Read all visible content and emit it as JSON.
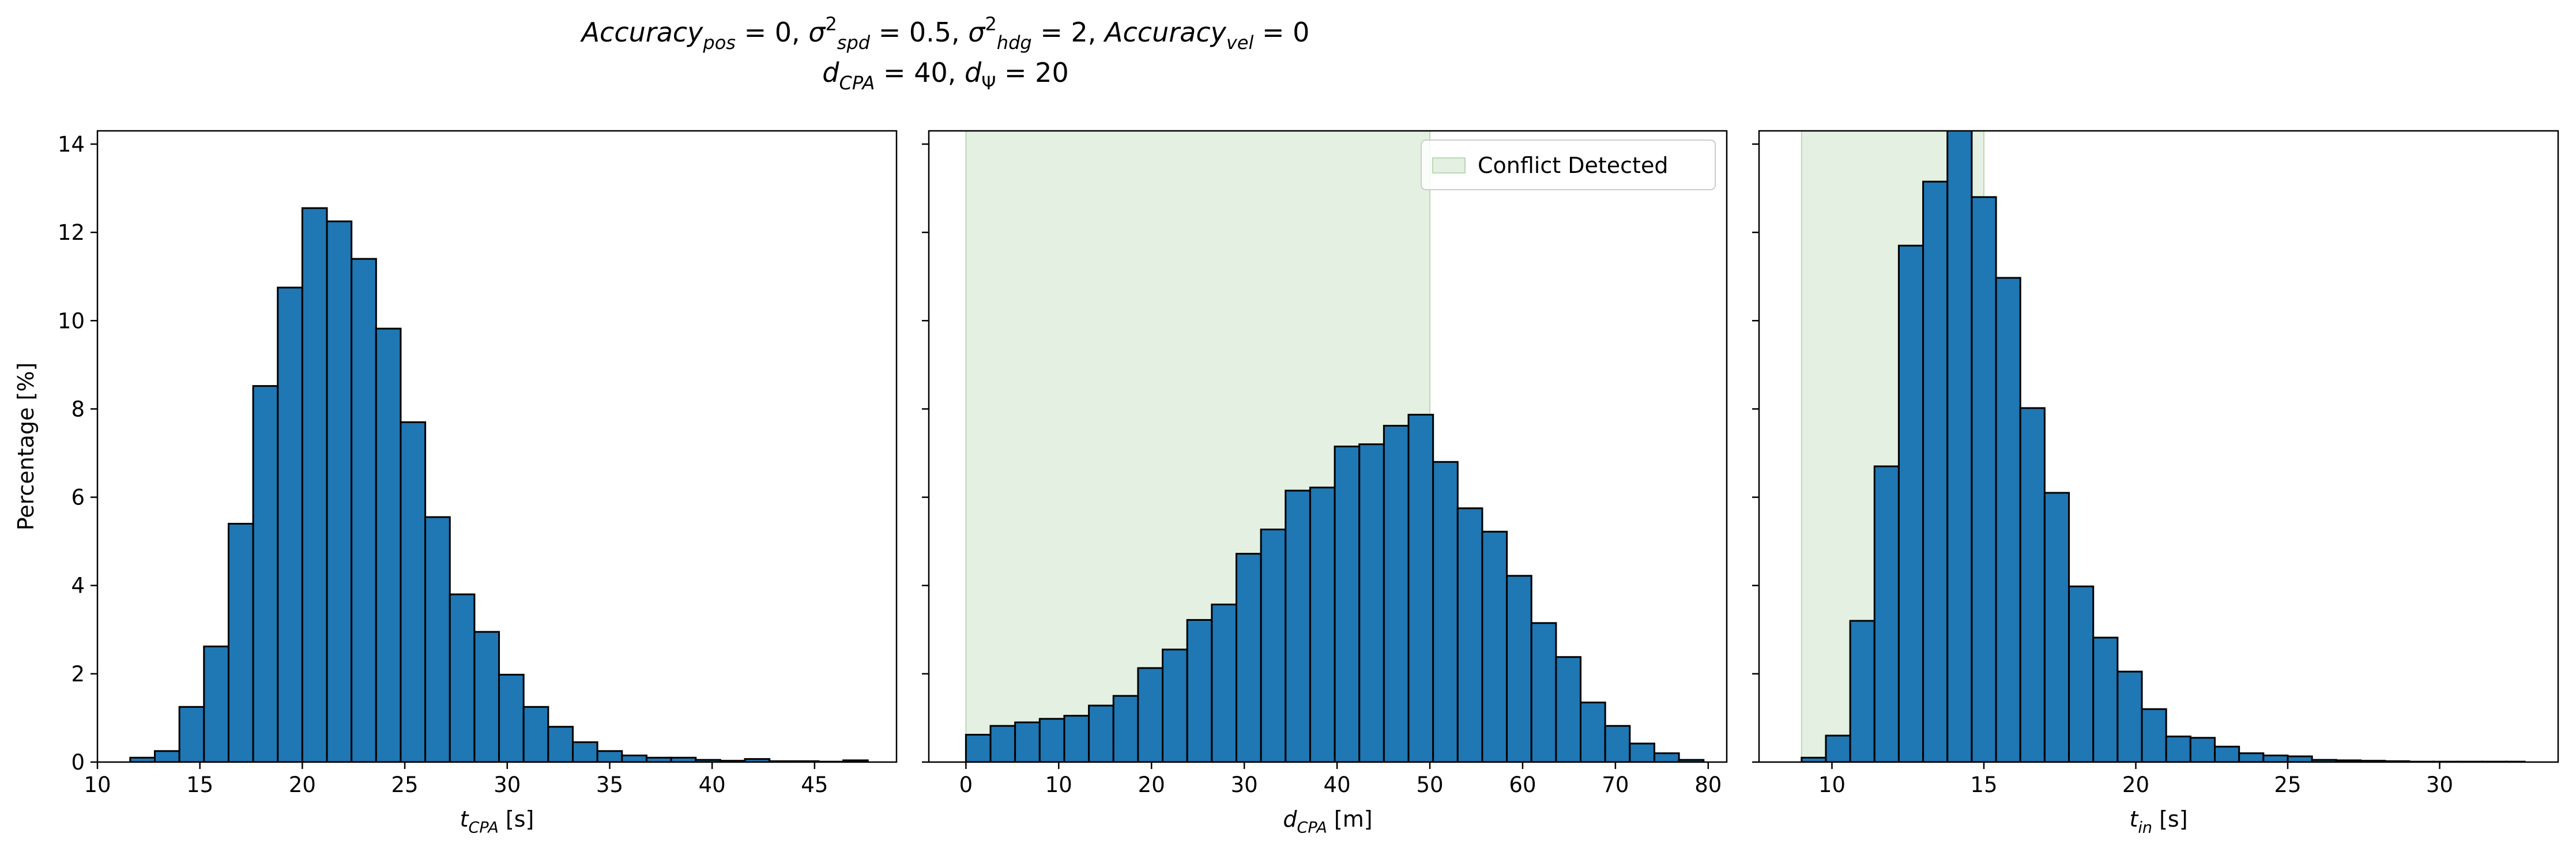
{
  "figure": {
    "title_line1": [
      {
        "t": "Accuracy",
        "style": "italic"
      },
      {
        "t": "pos",
        "style": "italic",
        "sub": true
      },
      {
        "t": " = 0, "
      },
      {
        "t": "σ",
        "style": "italic"
      },
      {
        "t": "2",
        "sup": true
      },
      {
        "t": "spd",
        "style": "italic",
        "sub": true
      },
      {
        "t": " = 0.5, "
      },
      {
        "t": "σ",
        "style": "italic"
      },
      {
        "t": "2",
        "sup": true
      },
      {
        "t": "hdg",
        "style": "italic",
        "sub": true
      },
      {
        "t": " = 2, "
      },
      {
        "t": "Accuracy",
        "style": "italic"
      },
      {
        "t": "vel",
        "style": "italic",
        "sub": true
      },
      {
        "t": " = 0"
      }
    ],
    "title_line2": [
      {
        "t": "d",
        "style": "italic"
      },
      {
        "t": "CPA",
        "style": "italic",
        "sub": true
      },
      {
        "t": " = 40, "
      },
      {
        "t": "d",
        "style": "italic"
      },
      {
        "t": "Ψ",
        "sub": true
      },
      {
        "t": " = 20"
      }
    ]
  },
  "colors": {
    "bar_fill": "#1f77b4",
    "bar_edge": "#000000",
    "conflict_shade": "#e4f0e2",
    "conflict_edge": "#b9d9b4"
  },
  "chart_data": [
    {
      "type": "bar",
      "subtype": "histogram",
      "xlabel": [
        {
          "t": "t",
          "style": "italic"
        },
        {
          "t": "CPA",
          "style": "italic",
          "sub": true
        },
        {
          "t": " [s]"
        }
      ],
      "ylabel": "Percentage [%]",
      "xlim": [
        10.0,
        49.0
      ],
      "ylim": [
        0,
        14.3
      ],
      "xticks": [
        10,
        15,
        20,
        25,
        30,
        35,
        40,
        45
      ],
      "yticks": [
        0,
        2,
        4,
        6,
        8,
        10,
        12,
        14
      ],
      "show_ytick_labels": true,
      "bin_edges": [
        11.6,
        12.8,
        14.0,
        15.2,
        16.4,
        17.6,
        18.8,
        20.0,
        21.2,
        22.4,
        23.6,
        24.8,
        26.0,
        27.2,
        28.4,
        29.6,
        30.8,
        32.0,
        33.2,
        34.4,
        35.6,
        36.8,
        38.0,
        39.2,
        40.4,
        41.6,
        42.8,
        44.0,
        45.2,
        46.4,
        47.6
      ],
      "values": [
        0.1,
        0.25,
        1.25,
        2.62,
        5.4,
        8.52,
        10.75,
        12.55,
        12.25,
        11.4,
        9.82,
        7.7,
        5.55,
        3.8,
        2.95,
        1.98,
        1.25,
        0.8,
        0.45,
        0.25,
        0.15,
        0.1,
        0.1,
        0.05,
        0.03,
        0.07,
        0.02,
        0.02,
        0.01,
        0.04
      ],
      "conflict_region": null
    },
    {
      "type": "bar",
      "subtype": "histogram",
      "xlabel": [
        {
          "t": "d",
          "style": "italic"
        },
        {
          "t": "CPA",
          "style": "italic",
          "sub": true
        },
        {
          "t": " [m]"
        }
      ],
      "ylabel": "",
      "xlim": [
        -4.0,
        82.0
      ],
      "ylim": [
        0,
        14.3
      ],
      "xticks": [
        0,
        10,
        20,
        30,
        40,
        50,
        60,
        70,
        80
      ],
      "yticks": [
        0,
        2,
        4,
        6,
        8,
        10,
        12,
        14
      ],
      "show_ytick_labels": false,
      "bin_edges": [
        0.0,
        2.65,
        5.3,
        7.95,
        10.6,
        13.25,
        15.9,
        18.55,
        21.2,
        23.85,
        26.5,
        29.15,
        31.8,
        34.45,
        37.1,
        39.75,
        42.4,
        45.05,
        47.7,
        50.35,
        53.0,
        55.65,
        58.3,
        60.95,
        63.6,
        66.25,
        68.9,
        71.55,
        74.2,
        76.85,
        79.5
      ],
      "values": [
        0.62,
        0.82,
        0.9,
        0.98,
        1.05,
        1.28,
        1.5,
        2.13,
        2.55,
        3.22,
        3.57,
        4.72,
        5.27,
        6.15,
        6.22,
        7.15,
        7.2,
        7.62,
        7.87,
        6.8,
        5.75,
        5.22,
        4.22,
        3.15,
        2.38,
        1.35,
        0.82,
        0.42,
        0.2,
        0.05
      ],
      "conflict_region": {
        "x0": 0,
        "x1": 50,
        "label": "Conflict Detected"
      },
      "legend": {
        "entries": [
          "Conflict Detected"
        ],
        "placement": "upper right"
      }
    },
    {
      "type": "bar",
      "subtype": "histogram",
      "xlabel": [
        {
          "t": "t",
          "style": "italic"
        },
        {
          "t": "in",
          "style": "italic",
          "sub": true
        },
        {
          "t": " [s]"
        }
      ],
      "ylabel": "",
      "xlim": [
        7.6,
        33.9
      ],
      "ylim": [
        0,
        14.3
      ],
      "xticks": [
        10,
        15,
        20,
        25,
        30
      ],
      "yticks": [
        0,
        2,
        4,
        6,
        8,
        10,
        12,
        14
      ],
      "show_ytick_labels": false,
      "bin_edges": [
        9.0,
        9.8,
        10.6,
        11.4,
        12.2,
        13.0,
        13.8,
        14.6,
        15.4,
        16.2,
        17.0,
        17.8,
        18.6,
        19.4,
        20.2,
        21.0,
        21.8,
        22.6,
        23.4,
        24.2,
        25.0,
        25.8,
        26.6,
        27.4,
        28.2,
        29.0,
        29.8,
        30.6,
        31.4,
        32.2,
        32.8
      ],
      "values": [
        0.1,
        0.6,
        3.2,
        6.7,
        11.7,
        13.15,
        14.35,
        12.8,
        10.97,
        8.02,
        6.1,
        3.98,
        2.82,
        2.05,
        1.2,
        0.58,
        0.55,
        0.35,
        0.2,
        0.15,
        0.13,
        0.05,
        0.04,
        0.03,
        0.02,
        0.01,
        0.01,
        0.01,
        0.01,
        0.01
      ],
      "conflict_region": {
        "x0": 9.0,
        "x1": 15.0,
        "label": "Conflict Detected"
      }
    }
  ]
}
